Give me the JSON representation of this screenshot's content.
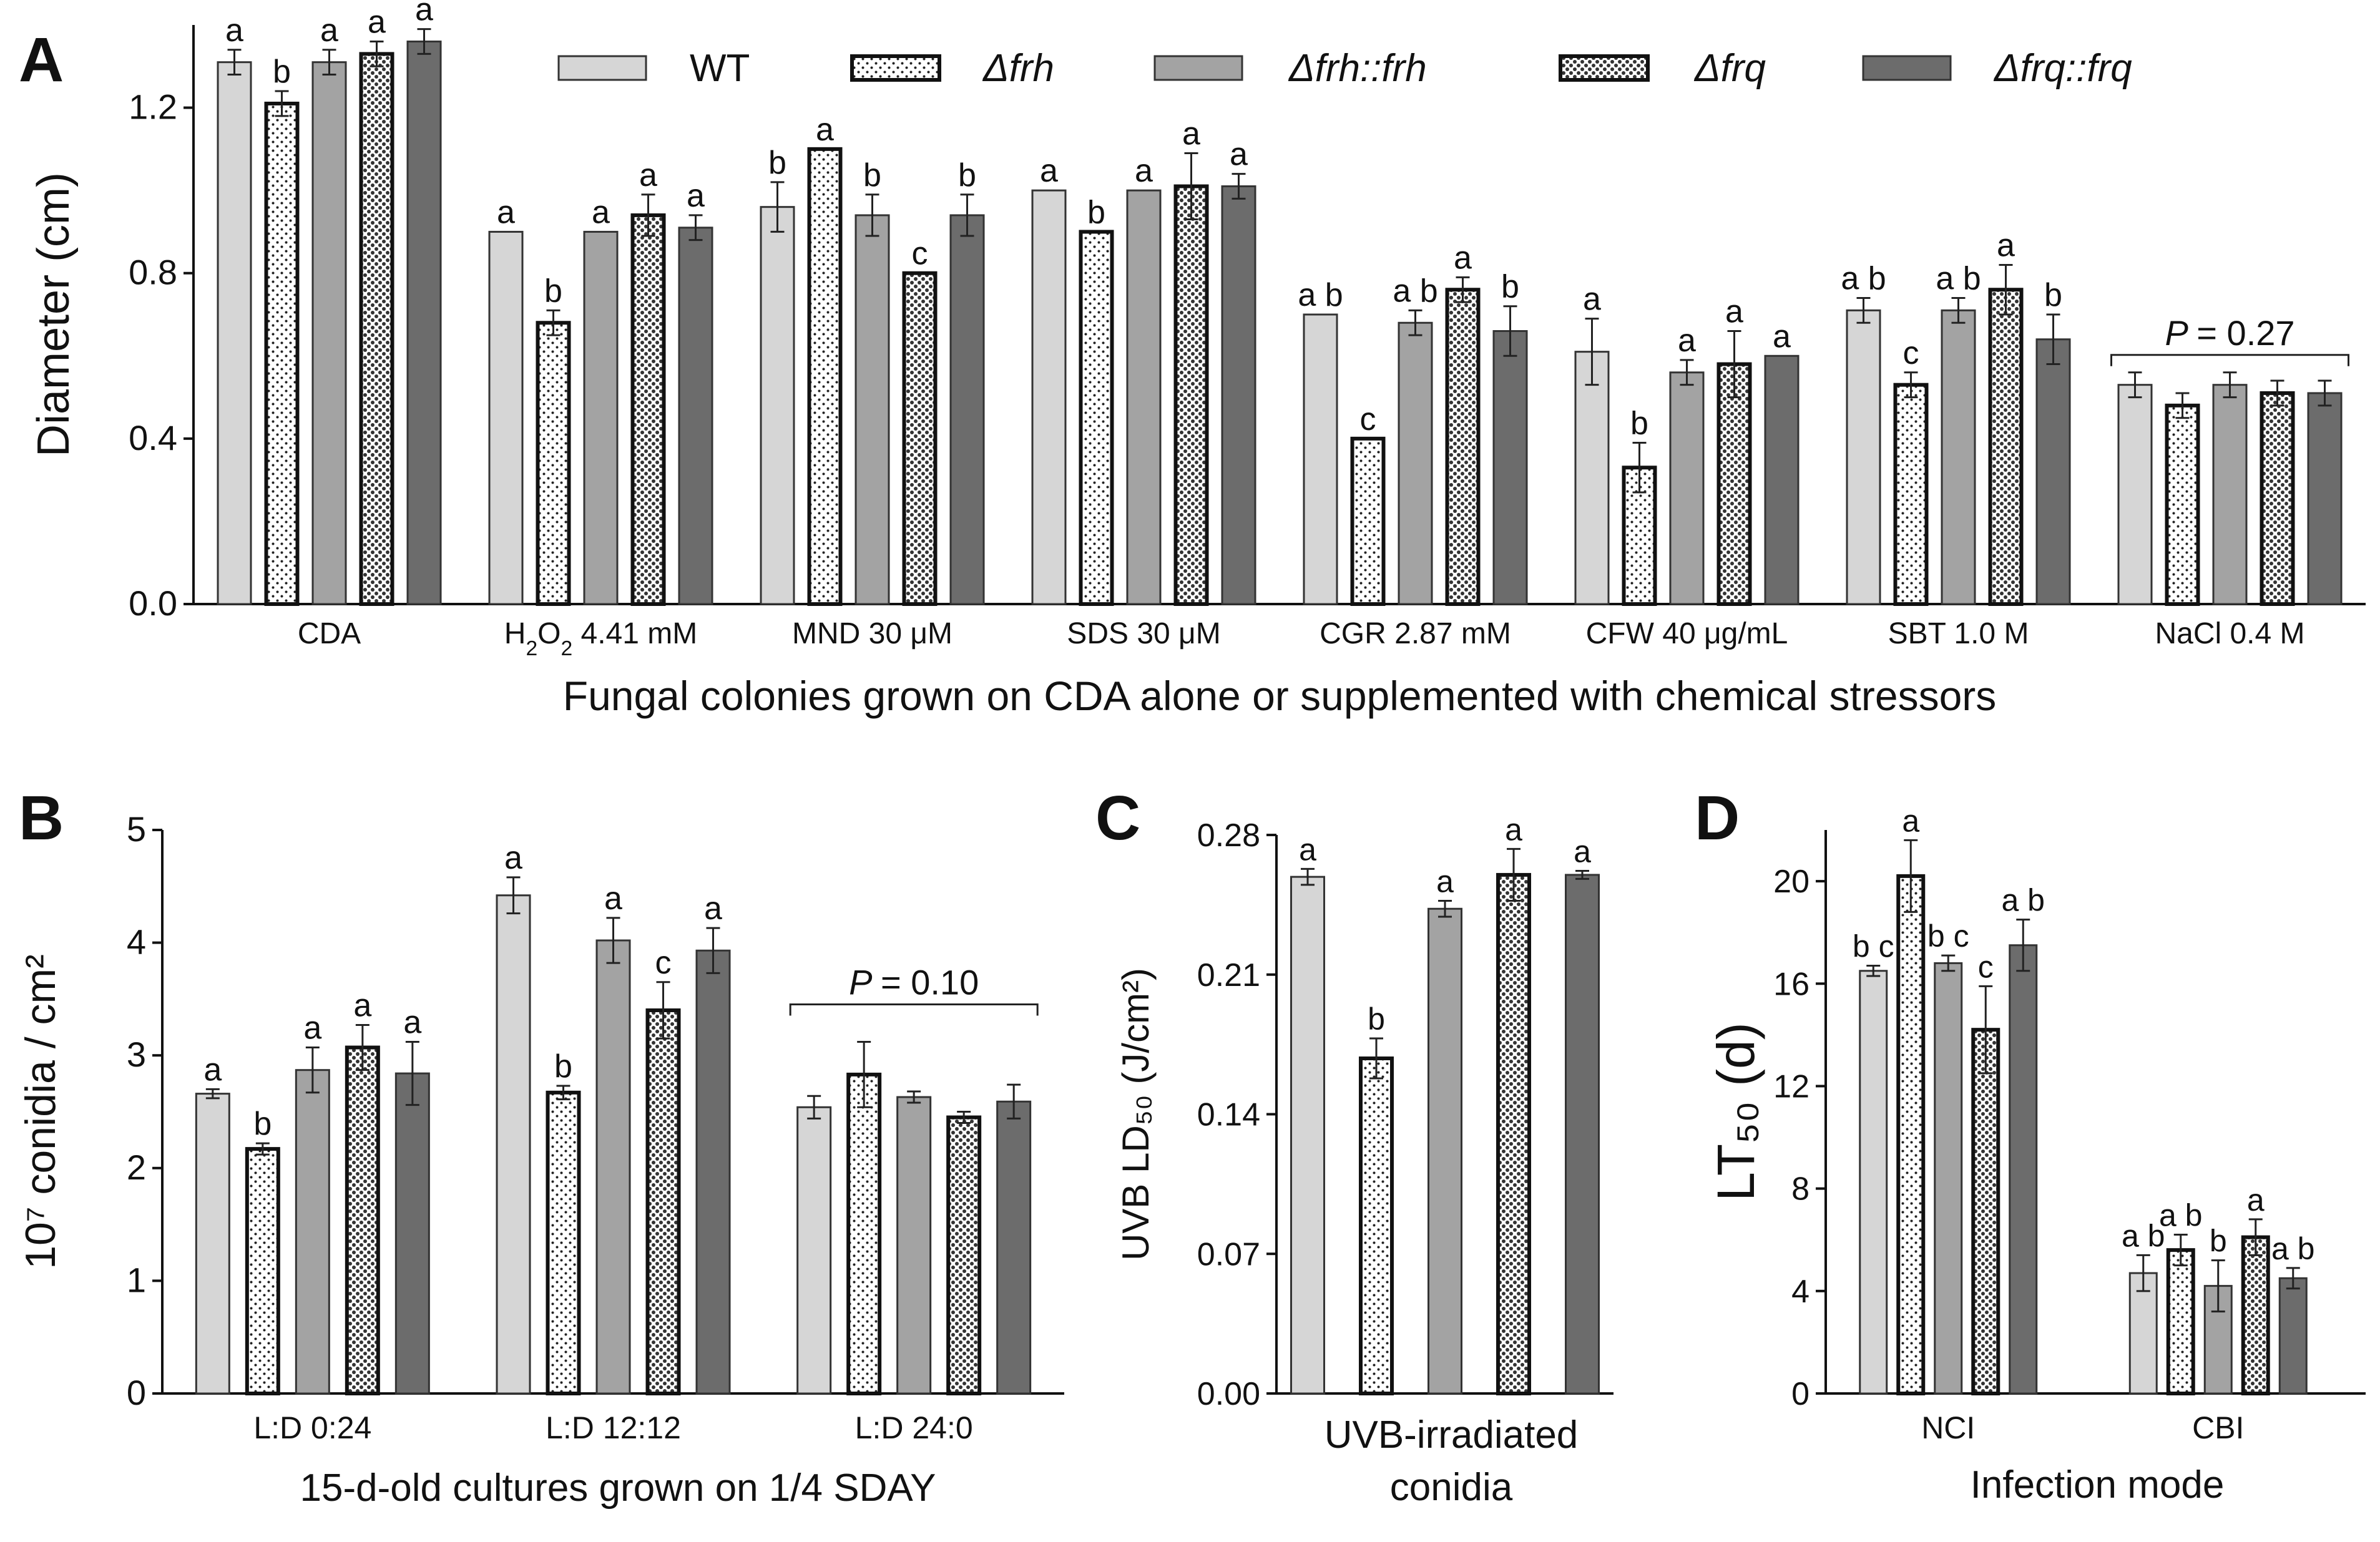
{
  "legend": {
    "entries": [
      {
        "label": "WT",
        "pattern": "wt"
      },
      {
        "label": "Δfrh",
        "pattern": "frh"
      },
      {
        "label": "Δfrh::frh",
        "pattern": "frhc"
      },
      {
        "label": "Δfrq",
        "pattern": "frq"
      },
      {
        "label": "Δfrq::frq",
        "pattern": "frqc"
      }
    ]
  },
  "colors": {
    "wt": "#d6d6d6",
    "comp_frh": "#a3a3a3",
    "comp_frq": "#6c6c6c",
    "mutant_fill": "#ffffff",
    "edge": "#333333"
  },
  "chart_data": [
    {
      "panel": "A",
      "type": "bar",
      "ylabel": "Diameter (cm)",
      "xlabel": "Fungal colonies grown on CDA alone or supplemented with  chemical stressors",
      "ylim": [
        0,
        1.4
      ],
      "yticks": [
        "0.0",
        "0.4",
        "0.8",
        "1.2"
      ],
      "categories": [
        "CDA",
        "H2O2 4.41 mM",
        "MND 30 μM",
        "SDS 30 μM",
        "CGR 2.87 mM",
        "CFW 40 μg/mL",
        "SBT 1.0 M",
        "NaCl 0.4 M"
      ],
      "series": [
        {
          "name": "WT",
          "values": [
            1.31,
            0.9,
            0.96,
            1.0,
            0.7,
            0.61,
            0.71,
            0.53
          ],
          "errors": [
            0.03,
            0,
            0.06,
            0,
            0,
            0.08,
            0.03,
            0.03
          ],
          "letters": [
            "a",
            "a",
            "b",
            "a",
            "a b",
            "a",
            "a b",
            ""
          ]
        },
        {
          "name": "Δfrh",
          "values": [
            1.21,
            0.68,
            1.1,
            0.9,
            0.4,
            0.33,
            0.53,
            0.48
          ],
          "errors": [
            0.03,
            0.03,
            0,
            0,
            0,
            0.06,
            0.03,
            0.03
          ],
          "letters": [
            "b",
            "b",
            "a",
            "b",
            "c",
            "b",
            "c",
            ""
          ]
        },
        {
          "name": "Δfrh::frh",
          "values": [
            1.31,
            0.9,
            0.94,
            1.0,
            0.68,
            0.56,
            0.71,
            0.53
          ],
          "errors": [
            0.03,
            0,
            0.05,
            0,
            0.03,
            0.03,
            0.03,
            0.03
          ],
          "letters": [
            "a",
            "a",
            "b",
            "a",
            "a b",
            "a",
            "a b",
            ""
          ]
        },
        {
          "name": "Δfrq",
          "values": [
            1.33,
            0.94,
            0.8,
            1.01,
            0.76,
            0.58,
            0.76,
            0.51
          ],
          "errors": [
            0.03,
            0.05,
            0,
            0.08,
            0.03,
            0.08,
            0.06,
            0.03
          ],
          "letters": [
            "a",
            "a",
            "c",
            "a",
            "a",
            "a",
            "a",
            ""
          ]
        },
        {
          "name": "Δfrq::frq",
          "values": [
            1.36,
            0.91,
            0.94,
            1.01,
            0.66,
            0.6,
            0.64,
            0.51
          ],
          "errors": [
            0.03,
            0.03,
            0.05,
            0.03,
            0.06,
            0,
            0.06,
            0.03
          ],
          "letters": [
            "a",
            "a",
            "b",
            "a",
            "b",
            "a",
            "b",
            ""
          ]
        }
      ],
      "annotation": {
        "category": "NaCl 0.4 M",
        "text": "= 0.27",
        "italic": "P"
      }
    },
    {
      "panel": "B",
      "type": "bar",
      "ylabel": "10⁷ conidia / cm²",
      "xlabel": "15-d-old cultures grown on 1/4 SDAY",
      "ylim": [
        0,
        5
      ],
      "yticks": [
        "0",
        "1",
        "2",
        "3",
        "4",
        "5"
      ],
      "categories": [
        "L:D 0:24",
        "L:D 12:12",
        "L:D 24:0"
      ],
      "series": [
        {
          "name": "WT",
          "values": [
            2.66,
            4.42,
            2.54
          ],
          "errors": [
            0.04,
            0.16,
            0.1
          ],
          "letters": [
            "a",
            "a",
            ""
          ]
        },
        {
          "name": "Δfrh",
          "values": [
            2.17,
            2.67,
            2.83
          ],
          "errors": [
            0.05,
            0.06,
            0.29
          ],
          "letters": [
            "b",
            "b",
            ""
          ]
        },
        {
          "name": "Δfrh::frh",
          "values": [
            2.87,
            4.02,
            2.63
          ],
          "errors": [
            0.2,
            0.2,
            0.05
          ],
          "letters": [
            "a",
            "a",
            ""
          ]
        },
        {
          "name": "Δfrq",
          "values": [
            3.07,
            3.4,
            2.45
          ],
          "errors": [
            0.2,
            0.25,
            0.05
          ],
          "letters": [
            "a",
            "c",
            ""
          ]
        },
        {
          "name": "Δfrq::frq",
          "values": [
            2.84,
            3.93,
            2.59
          ],
          "errors": [
            0.28,
            0.2,
            0.15
          ],
          "letters": [
            "a",
            "a",
            ""
          ]
        }
      ],
      "annotation": {
        "category": "L:D 24:0",
        "text": "= 0.10",
        "italic": "P"
      }
    },
    {
      "panel": "C",
      "type": "bar",
      "ylabel": "UVB LD₅₀ (J/cm²)",
      "xlabel": "UVB-irradiated conidia",
      "ylim": [
        0,
        0.28
      ],
      "yticks": [
        "0.00",
        "0.07",
        "0.14",
        "0.21",
        "0.28"
      ],
      "categories": [
        ""
      ],
      "series": [
        {
          "name": "WT",
          "values": [
            0.259
          ],
          "errors": [
            0.004
          ],
          "letters": [
            "a"
          ]
        },
        {
          "name": "Δfrh",
          "values": [
            0.168
          ],
          "errors": [
            0.01
          ],
          "letters": [
            "b"
          ]
        },
        {
          "name": "Δfrh::frh",
          "values": [
            0.243
          ],
          "errors": [
            0.004
          ],
          "letters": [
            "a"
          ]
        },
        {
          "name": "Δfrq",
          "values": [
            0.26
          ],
          "errors": [
            0.013
          ],
          "letters": [
            "a"
          ]
        },
        {
          "name": "Δfrq::frq",
          "values": [
            0.26
          ],
          "errors": [
            0.002
          ],
          "letters": [
            "a"
          ]
        }
      ]
    },
    {
      "panel": "D",
      "type": "bar",
      "ylabel": "LT₅₀ (d)",
      "xlabel": "Infection mode",
      "ylim": [
        0,
        22
      ],
      "yticks": [
        "0",
        "4",
        "8",
        "12",
        "16",
        "20"
      ],
      "categories": [
        "NCI",
        "CBI"
      ],
      "series": [
        {
          "name": "WT",
          "values": [
            16.5,
            4.7
          ],
          "errors": [
            0.2,
            0.7
          ],
          "letters": [
            "b c",
            "a b"
          ]
        },
        {
          "name": "Δfrh",
          "values": [
            20.2,
            5.6
          ],
          "errors": [
            1.4,
            0.6
          ],
          "letters": [
            "a",
            "a b"
          ]
        },
        {
          "name": "Δfrh::frh",
          "values": [
            16.8,
            4.2
          ],
          "errors": [
            0.3,
            1.0
          ],
          "letters": [
            "b c",
            "b"
          ]
        },
        {
          "name": "Δfrq",
          "values": [
            14.2,
            6.1
          ],
          "errors": [
            1.7,
            0.7
          ],
          "letters": [
            "c",
            "a"
          ]
        },
        {
          "name": "Δfrq::frq",
          "values": [
            17.5,
            4.5
          ],
          "errors": [
            1.0,
            0.4
          ],
          "letters": [
            "a b",
            "a b"
          ]
        }
      ]
    }
  ]
}
